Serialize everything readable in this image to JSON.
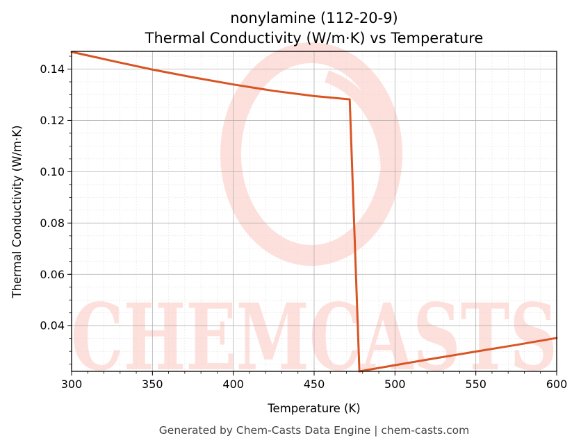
{
  "chart_data": {
    "type": "line",
    "title": "nonylamine (112-20-9)",
    "subtitle": "Thermal Conductivity (W/m·K) vs Temperature",
    "xlabel": "Temperature (K)",
    "ylabel": "Thermal Conductivity (W/m·K)",
    "xlim": [
      300,
      600
    ],
    "ylim": [
      0.0222,
      0.1469
    ],
    "xticks": [
      300,
      350,
      400,
      450,
      500,
      550,
      600
    ],
    "yticks": [
      0.04,
      0.06,
      0.08,
      0.1,
      0.12,
      0.14
    ],
    "xtick_labels": [
      "300",
      "350",
      "400",
      "450",
      "500",
      "550",
      "600"
    ],
    "ytick_labels": [
      "0.04",
      "0.06",
      "0.08",
      "0.10",
      "0.12",
      "0.14"
    ],
    "grid": true,
    "series": [
      {
        "color": "#d95424",
        "x": [
          300,
          325,
          350,
          375,
          400,
          425,
          450,
          472,
          478,
          500,
          525,
          550,
          575,
          600
        ],
        "y": [
          0.1467,
          0.1432,
          0.1398,
          0.1368,
          0.134,
          0.1315,
          0.1295,
          0.1282,
          0.0222,
          0.0246,
          0.0273,
          0.0299,
          0.0325,
          0.0352
        ]
      }
    ],
    "watermark": "CHEMCASTS",
    "footer": "Generated by Chem-Casts Data Engine | chem-casts.com"
  }
}
